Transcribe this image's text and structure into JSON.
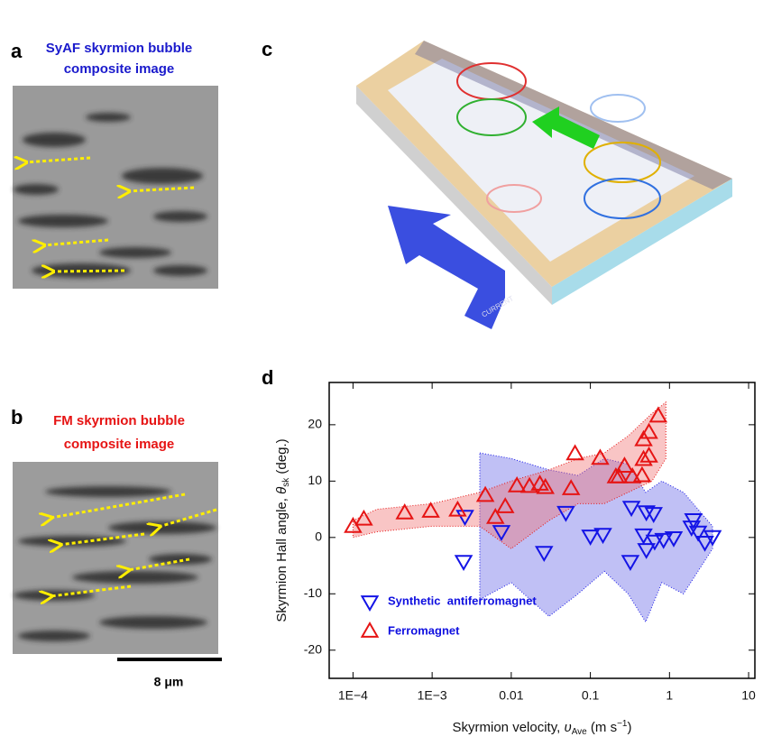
{
  "panels": {
    "a": {
      "label": "a",
      "title": [
        "SyAF skyrmion bubble",
        "composite image"
      ]
    },
    "b": {
      "label": "b",
      "title": [
        "FM skyrmion bubble",
        "composite image"
      ],
      "scale_bar": "8 μm"
    },
    "c": {
      "label": "c",
      "arrow_text": "CURRENT"
    },
    "d": {
      "label": "d"
    }
  },
  "chart_data": {
    "type": "scatter",
    "xlabel": "Skyrmion velocity, ",
    "xlabel_symbol": "υ",
    "xlabel_sub": "Ave",
    "xlabel_unit": " (m s",
    "xlabel_sup": "−1",
    "xlabel_end": ")",
    "ylabel": "Skyrmion Hall angle, ",
    "ylabel_symbol": "θ",
    "ylabel_sub": "sk",
    "ylabel_end": " (deg.)",
    "xscale": "log",
    "xlim": [
      5e-05,
      12
    ],
    "ylim": [
      -25,
      27.5
    ],
    "xticks": [
      {
        "value": 0.0001,
        "label": "1E−4"
      },
      {
        "value": 0.001,
        "label": "1E−3"
      },
      0.01,
      0.1,
      1,
      10
    ],
    "yticks": [
      -20,
      -10,
      0,
      10,
      20
    ],
    "legend": "lower left",
    "series": [
      {
        "name": "Synthetic  antiferromagnet",
        "color": "#1414e6",
        "marker": "triangle-down",
        "band_color": "rgba(90,90,230,0.38)",
        "x": [
          0.0026,
          0.0025,
          0.0075,
          0.026,
          0.049,
          0.1,
          0.144,
          0.32,
          0.33,
          0.47,
          0.51,
          0.63,
          0.51,
          0.65,
          0.84,
          1.13,
          1.9,
          2.0,
          2.3,
          2.8,
          3.5
        ],
        "values": [
          3.8,
          -4.2,
          1.1,
          -2.6,
          4.5,
          0.3,
          0.6,
          -4.2,
          5.4,
          0.5,
          4.6,
          4.3,
          -2.1,
          -0.6,
          -0.3,
          0,
          1.9,
          3.2,
          1.0,
          -0.8,
          0.2
        ],
        "band": {
          "x": [
            0.004,
            0.01,
            0.03,
            0.07,
            0.15,
            0.3,
            0.5,
            0.8,
            1.5,
            3.5
          ],
          "upper": [
            15,
            14,
            12,
            11,
            14,
            13,
            8,
            10,
            8,
            2
          ],
          "lower": [
            -11,
            -8,
            -14,
            -10,
            -6,
            -10,
            -15,
            -8,
            -10,
            -2
          ]
        }
      },
      {
        "name": "Ferromagnet",
        "color": "#e61414",
        "marker": "triangle-up",
        "band_color": "rgba(240,110,110,0.4)",
        "x": [
          0.0001,
          0.000137,
          0.00045,
          0.00096,
          0.0021,
          0.0047,
          0.0063,
          0.0084,
          0.0118,
          0.017,
          0.023,
          0.027,
          0.057,
          0.064,
          0.133,
          0.21,
          0.23,
          0.27,
          0.34,
          0.45,
          0.47,
          0.47,
          0.55,
          0.55,
          0.72
        ],
        "values": [
          1.9,
          3.2,
          4.3,
          4.6,
          4.8,
          7.4,
          3.5,
          5.4,
          9.1,
          9.0,
          9.4,
          8.8,
          8.6,
          14.8,
          14.0,
          10.7,
          10.7,
          12.6,
          10.7,
          10.9,
          17.3,
          13.8,
          18.6,
          14.4,
          21.5
        ],
        "band": {
          "x": [
            0.0001,
            0.0002,
            0.001,
            0.004,
            0.01,
            0.03,
            0.07,
            0.15,
            0.3,
            0.6,
            0.9
          ],
          "upper": [
            3,
            5,
            6,
            8,
            10,
            12,
            14,
            15,
            18,
            22,
            24
          ],
          "lower": [
            0,
            1,
            2,
            2,
            -2,
            3,
            6,
            6,
            8,
            10,
            14
          ]
        }
      }
    ]
  }
}
